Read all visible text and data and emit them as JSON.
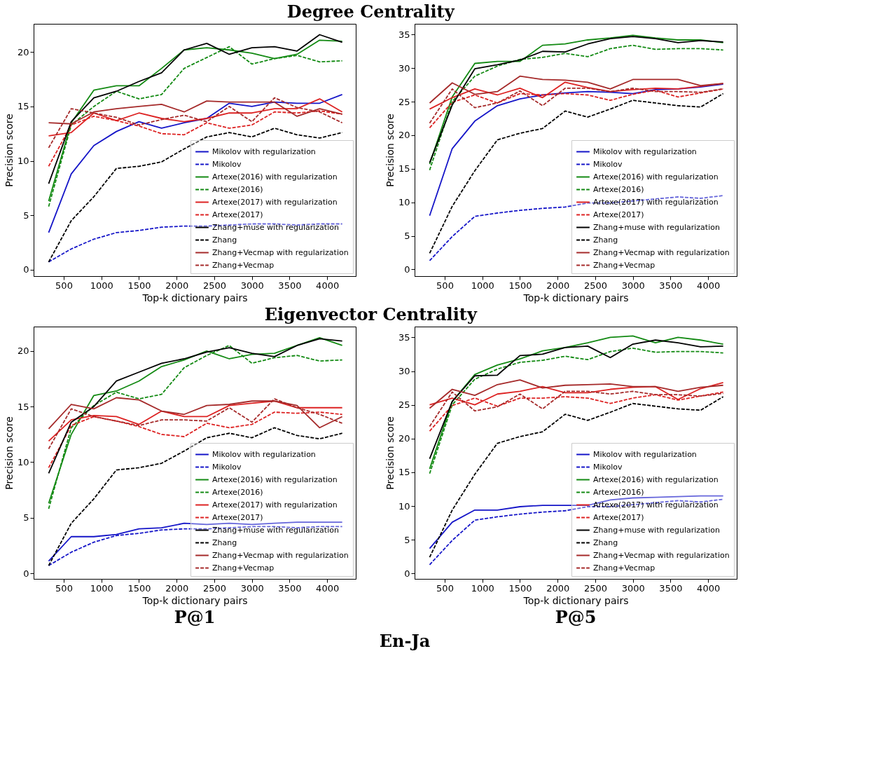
{
  "chart_data": [
    {
      "type": "line",
      "title": "Degree Centrality",
      "xlabel": "Top-k dictionary pairs",
      "ylabel": "Precision score",
      "x": [
        300,
        600,
        900,
        1200,
        1500,
        1800,
        2100,
        2400,
        2700,
        3000,
        3300,
        3600,
        3900,
        4200
      ],
      "xlim": [
        100,
        4380
      ],
      "xticks": [
        500,
        1000,
        1500,
        2000,
        2500,
        3000,
        3500,
        4000
      ],
      "ylim": [
        -0.6,
        22.6
      ],
      "yticks": [
        0,
        5,
        10,
        15,
        20
      ],
      "grid": false,
      "legend": "bottom right",
      "series": [
        {
          "name": "Mikolov with regularization",
          "color": "#1515c8",
          "line_style": "solid",
          "values": [
            3.4,
            8.8,
            11.4,
            12.7,
            13.6,
            13.0,
            13.5,
            13.9,
            15.3,
            15.0,
            15.4,
            15.3,
            15.3,
            16.1
          ]
        },
        {
          "name": "Mikolov",
          "color": "#1515c8",
          "line_style": "dashed",
          "values": [
            0.7,
            1.9,
            2.8,
            3.4,
            3.6,
            3.9,
            4.0,
            4.0,
            4.1,
            4.2,
            4.2,
            4.1,
            4.2,
            4.2
          ]
        },
        {
          "name": "Artexe(2016) with regularization",
          "color": "#138a13",
          "line_style": "solid",
          "values": [
            6.3,
            13.5,
            16.5,
            16.9,
            16.9,
            18.5,
            20.2,
            20.4,
            20.2,
            19.9,
            19.4,
            19.8,
            21.1,
            21.0
          ]
        },
        {
          "name": "Artexe(2016)",
          "color": "#138a13",
          "line_style": "dashed",
          "values": [
            5.8,
            13.3,
            15.0,
            16.4,
            15.7,
            16.1,
            18.5,
            19.5,
            20.5,
            18.9,
            19.4,
            19.7,
            19.1,
            19.2
          ]
        },
        {
          "name": "Artexe(2017) with regularization",
          "color": "#dd2222",
          "line_style": "solid",
          "values": [
            12.3,
            12.6,
            14.4,
            13.7,
            14.4,
            13.9,
            13.6,
            13.9,
            14.4,
            14.4,
            14.8,
            14.8,
            15.7,
            14.5
          ]
        },
        {
          "name": "Artexe(2017)",
          "color": "#dd2222",
          "line_style": "dashed",
          "values": [
            9.5,
            13.3,
            14.1,
            13.7,
            13.2,
            12.5,
            12.4,
            13.5,
            13.0,
            13.3,
            14.5,
            14.4,
            14.6,
            14.3
          ]
        },
        {
          "name": "Zhang+muse with regularization",
          "color": "#000000",
          "line_style": "solid",
          "values": [
            7.9,
            13.6,
            15.8,
            16.4,
            17.3,
            18.1,
            20.2,
            20.8,
            19.8,
            20.4,
            20.5,
            20.1,
            21.6,
            20.9
          ]
        },
        {
          "name": "Zhang",
          "color": "#000000",
          "line_style": "dashed",
          "values": [
            0.7,
            4.5,
            6.7,
            9.3,
            9.5,
            9.9,
            11.1,
            12.2,
            12.6,
            12.2,
            13.0,
            12.4,
            12.1,
            12.6
          ]
        },
        {
          "name": "Zhang+Vecmap with regularization",
          "color": "#a52a2a",
          "line_style": "solid",
          "values": [
            13.5,
            13.4,
            14.5,
            14.8,
            15.0,
            15.2,
            14.5,
            15.5,
            15.4,
            15.4,
            15.4,
            14.1,
            14.8,
            14.3
          ]
        },
        {
          "name": "Zhang+Vecmap",
          "color": "#a52a2a",
          "line_style": "dashed",
          "values": [
            11.2,
            14.8,
            14.4,
            14.0,
            13.3,
            13.8,
            14.2,
            13.6,
            15.0,
            13.6,
            15.8,
            14.9,
            14.5,
            13.5
          ]
        }
      ]
    },
    {
      "type": "line",
      "xlabel": "Top-k dictionary pairs",
      "ylabel": "Precision score",
      "x": [
        300,
        600,
        900,
        1200,
        1500,
        1800,
        2100,
        2400,
        2700,
        3000,
        3300,
        3600,
        3900,
        4200
      ],
      "xlim": [
        100,
        4380
      ],
      "xticks": [
        500,
        1000,
        1500,
        2000,
        2500,
        3000,
        3500,
        4000
      ],
      "ylim": [
        -1.0,
        36.6
      ],
      "yticks": [
        0,
        5,
        10,
        15,
        20,
        25,
        30,
        35
      ],
      "grid": false,
      "legend": "bottom right",
      "series": [
        {
          "name": "Mikolov with regularization",
          "color": "#1515c8",
          "line_style": "solid",
          "values": [
            8.0,
            18.0,
            22.1,
            24.4,
            25.4,
            26.0,
            26.3,
            26.5,
            26.4,
            26.2,
            26.8,
            26.9,
            27.2,
            27.6
          ]
        },
        {
          "name": "Mikolov",
          "color": "#1515c8",
          "line_style": "dashed",
          "values": [
            1.3,
            4.9,
            7.9,
            8.4,
            8.8,
            9.1,
            9.3,
            9.9,
            9.9,
            10.2,
            10.5,
            10.8,
            10.6,
            11.0
          ]
        },
        {
          "name": "Artexe(2016) with regularization",
          "color": "#138a13",
          "line_style": "solid",
          "values": [
            15.7,
            25.7,
            30.7,
            31.0,
            31.0,
            33.4,
            33.6,
            34.2,
            34.5,
            34.9,
            34.5,
            34.2,
            34.2,
            33.8
          ]
        },
        {
          "name": "Artexe(2016)",
          "color": "#138a13",
          "line_style": "dashed",
          "values": [
            14.8,
            25.0,
            28.8,
            30.3,
            31.3,
            31.6,
            32.2,
            31.7,
            32.9,
            33.4,
            32.8,
            32.9,
            32.9,
            32.7
          ]
        },
        {
          "name": "Artexe(2017) with regularization",
          "color": "#dd2222",
          "line_style": "solid",
          "values": [
            23.9,
            25.6,
            26.9,
            26.0,
            27.0,
            25.6,
            27.9,
            27.1,
            26.5,
            26.8,
            27.0,
            26.9,
            27.3,
            27.7
          ]
        },
        {
          "name": "Artexe(2017)",
          "color": "#dd2222",
          "line_style": "dashed",
          "values": [
            21.1,
            24.9,
            26.0,
            24.8,
            26.2,
            26.0,
            26.2,
            26.0,
            25.2,
            26.1,
            26.7,
            25.7,
            26.3,
            26.9
          ]
        },
        {
          "name": "Zhang+muse with regularization",
          "color": "#000000",
          "line_style": "solid",
          "values": [
            15.9,
            24.5,
            29.9,
            30.5,
            31.2,
            32.5,
            32.4,
            33.6,
            34.4,
            34.7,
            34.4,
            33.8,
            34.1,
            33.9
          ]
        },
        {
          "name": "Zhang",
          "color": "#000000",
          "line_style": "dashed",
          "values": [
            2.4,
            9.4,
            14.7,
            19.3,
            20.3,
            21.0,
            23.6,
            22.7,
            23.9,
            25.2,
            24.8,
            24.4,
            24.2,
            26.2
          ]
        },
        {
          "name": "Zhang+Vecmap with regularization",
          "color": "#a52a2a",
          "line_style": "solid",
          "values": [
            24.8,
            27.8,
            26.1,
            26.5,
            28.8,
            28.3,
            28.2,
            27.9,
            26.9,
            28.3,
            28.3,
            28.3,
            27.4,
            27.7
          ]
        },
        {
          "name": "Zhang+Vecmap",
          "color": "#a52a2a",
          "line_style": "dashed",
          "values": [
            21.8,
            26.9,
            24.1,
            24.8,
            26.6,
            24.4,
            27.0,
            27.0,
            26.5,
            27.0,
            26.5,
            26.5,
            26.4,
            26.9
          ]
        }
      ]
    },
    {
      "type": "line",
      "title": "Eigenvector Centrality",
      "xlabel": "Top-k dictionary pairs",
      "ylabel": "Precision score",
      "annotations": [
        "P@1",
        "En-Ja"
      ],
      "x": [
        300,
        600,
        900,
        1200,
        1500,
        1800,
        2100,
        2400,
        2700,
        3000,
        3300,
        3600,
        3900,
        4200
      ],
      "xlim": [
        100,
        4380
      ],
      "xticks": [
        500,
        1000,
        1500,
        2000,
        2500,
        3000,
        3500,
        4000
      ],
      "ylim": [
        -0.5,
        22.2
      ],
      "yticks": [
        0,
        5,
        10,
        15,
        20
      ],
      "grid": false,
      "legend": "bottom right",
      "series": [
        {
          "name": "Mikolov with regularization",
          "color": "#1515c8",
          "line_style": "solid",
          "values": [
            1.1,
            3.3,
            3.3,
            3.5,
            4.0,
            4.1,
            4.5,
            4.4,
            4.5,
            4.4,
            4.5,
            4.6,
            4.6,
            4.6
          ]
        },
        {
          "name": "Mikolov",
          "color": "#1515c8",
          "line_style": "dashed",
          "values": [
            0.7,
            1.9,
            2.8,
            3.4,
            3.6,
            3.9,
            4.0,
            4.0,
            4.1,
            4.2,
            4.2,
            4.1,
            4.2,
            4.2
          ]
        },
        {
          "name": "Artexe(2016) with regularization",
          "color": "#138a13",
          "line_style": "solid",
          "values": [
            6.3,
            12.5,
            16.0,
            16.4,
            17.3,
            18.6,
            19.2,
            20.0,
            19.3,
            19.7,
            19.8,
            20.5,
            21.2,
            20.5
          ]
        },
        {
          "name": "Artexe(2016)",
          "color": "#138a13",
          "line_style": "dashed",
          "values": [
            5.8,
            13.1,
            15.1,
            16.3,
            15.7,
            16.1,
            18.5,
            19.6,
            20.5,
            18.9,
            19.4,
            19.6,
            19.1,
            19.2
          ]
        },
        {
          "name": "Artexe(2017) with regularization",
          "color": "#dd2222",
          "line_style": "solid",
          "values": [
            11.9,
            13.8,
            14.2,
            14.1,
            13.4,
            14.6,
            14.1,
            14.1,
            15.1,
            15.3,
            15.5,
            14.9,
            14.9,
            14.9
          ]
        },
        {
          "name": "Artexe(2017)",
          "color": "#dd2222",
          "line_style": "dashed",
          "values": [
            9.5,
            13.3,
            14.1,
            13.7,
            13.2,
            12.5,
            12.3,
            13.5,
            13.1,
            13.4,
            14.5,
            14.4,
            14.5,
            14.3
          ]
        },
        {
          "name": "Zhang+muse with regularization",
          "color": "#000000",
          "line_style": "solid",
          "values": [
            9.0,
            13.6,
            15.0,
            17.3,
            18.1,
            18.9,
            19.3,
            19.9,
            20.3,
            19.8,
            19.5,
            20.5,
            21.1,
            20.9
          ]
        },
        {
          "name": "Zhang",
          "color": "#000000",
          "line_style": "dashed",
          "values": [
            0.7,
            4.5,
            6.7,
            9.3,
            9.5,
            9.9,
            11.0,
            12.2,
            12.6,
            12.2,
            13.1,
            12.4,
            12.1,
            12.6
          ]
        },
        {
          "name": "Zhang+Vecmap with regularization",
          "color": "#a52a2a",
          "line_style": "solid",
          "values": [
            13.0,
            15.2,
            14.8,
            15.8,
            15.6,
            14.6,
            14.3,
            15.1,
            15.2,
            15.5,
            15.5,
            15.1,
            13.1,
            14.1
          ]
        },
        {
          "name": "Zhang+Vecmap",
          "color": "#a52a2a",
          "line_style": "dashed",
          "values": [
            11.2,
            14.8,
            14.1,
            13.7,
            13.3,
            13.8,
            13.8,
            13.7,
            14.9,
            13.6,
            15.7,
            14.9,
            14.3,
            13.5
          ]
        }
      ]
    },
    {
      "type": "line",
      "xlabel": "Top-k dictionary pairs",
      "ylabel": "Precision score",
      "annotations": [
        "P@5"
      ],
      "x": [
        300,
        600,
        900,
        1200,
        1500,
        1800,
        2100,
        2400,
        2700,
        3000,
        3300,
        3600,
        3900,
        4200
      ],
      "xlim": [
        100,
        4380
      ],
      "xticks": [
        500,
        1000,
        1500,
        2000,
        2500,
        3000,
        3500,
        4000
      ],
      "ylim": [
        -0.8,
        36.6
      ],
      "yticks": [
        0,
        5,
        10,
        15,
        20,
        25,
        30,
        35
      ],
      "grid": false,
      "legend": "bottom right",
      "series": [
        {
          "name": "Mikolov with regularization",
          "color": "#1515c8",
          "line_style": "solid",
          "values": [
            3.7,
            7.6,
            9.4,
            9.4,
            9.9,
            10.1,
            10.1,
            10.1,
            10.9,
            11.2,
            11.3,
            11.4,
            11.5,
            11.5
          ]
        },
        {
          "name": "Mikolov",
          "color": "#1515c8",
          "line_style": "dashed",
          "values": [
            1.3,
            4.9,
            7.9,
            8.4,
            8.8,
            9.1,
            9.3,
            9.9,
            9.9,
            10.2,
            10.5,
            10.8,
            10.6,
            11.0
          ]
        },
        {
          "name": "Artexe(2016) with regularization",
          "color": "#138a13",
          "line_style": "solid",
          "values": [
            15.5,
            25.5,
            29.5,
            30.9,
            31.8,
            33.0,
            33.5,
            34.2,
            35.0,
            35.2,
            34.2,
            35.0,
            34.6,
            34.0
          ]
        },
        {
          "name": "Artexe(2016)",
          "color": "#138a13",
          "line_style": "dashed",
          "values": [
            14.8,
            25.0,
            28.8,
            30.3,
            31.3,
            31.6,
            32.2,
            31.7,
            32.9,
            33.4,
            32.8,
            32.9,
            32.9,
            32.7
          ]
        },
        {
          "name": "Artexe(2017) with regularization",
          "color": "#dd2222",
          "line_style": "solid",
          "values": [
            25.0,
            26.0,
            25.0,
            26.6,
            27.0,
            27.7,
            26.8,
            26.8,
            27.3,
            27.6,
            27.7,
            25.8,
            27.4,
            28.3
          ]
        },
        {
          "name": "Artexe(2017)",
          "color": "#dd2222",
          "line_style": "dashed",
          "values": [
            21.1,
            24.9,
            26.0,
            24.8,
            26.0,
            26.0,
            26.2,
            26.0,
            25.2,
            26.0,
            26.5,
            25.7,
            26.3,
            26.9
          ]
        },
        {
          "name": "Zhang+muse with regularization",
          "color": "#000000",
          "line_style": "solid",
          "values": [
            17.0,
            25.5,
            29.3,
            29.4,
            32.3,
            32.5,
            33.5,
            33.7,
            32.0,
            34.0,
            34.6,
            34.2,
            33.6,
            33.7
          ]
        },
        {
          "name": "Zhang",
          "color": "#000000",
          "line_style": "dashed",
          "values": [
            2.4,
            9.4,
            14.7,
            19.3,
            20.3,
            21.0,
            23.6,
            22.7,
            23.9,
            25.2,
            24.8,
            24.4,
            24.2,
            26.2
          ]
        },
        {
          "name": "Zhang+Vecmap with regularization",
          "color": "#a52a2a",
          "line_style": "solid",
          "values": [
            24.5,
            27.3,
            26.4,
            28.0,
            28.7,
            27.5,
            27.9,
            28.0,
            28.1,
            27.7,
            27.7,
            27.0,
            27.6,
            27.9
          ]
        },
        {
          "name": "Zhang+Vecmap",
          "color": "#a52a2a",
          "line_style": "dashed",
          "values": [
            21.8,
            26.9,
            24.1,
            24.7,
            26.6,
            24.4,
            27.0,
            27.0,
            26.6,
            27.0,
            26.5,
            26.5,
            26.3,
            26.7
          ]
        }
      ]
    }
  ]
}
